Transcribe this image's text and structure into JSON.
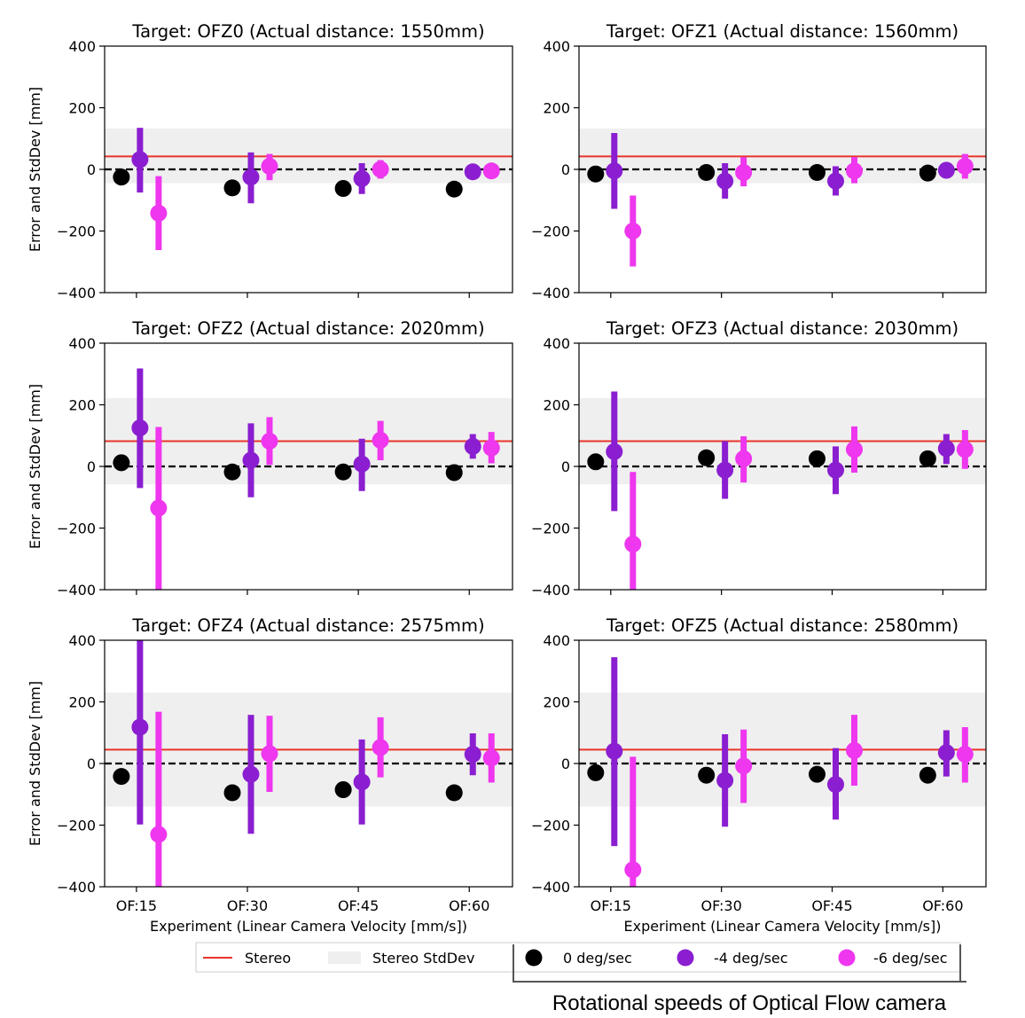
{
  "figure": {
    "annotation": "Rotational speeds of Optical Flow camera",
    "colors": {
      "stereo_line": "#e8352b",
      "stereo_band": "#efefef",
      "zero_line": "#000000",
      "axes": "#000000"
    }
  },
  "legend": {
    "items": [
      {
        "label": "Stereo",
        "kind": "line",
        "color": "#e8352b"
      },
      {
        "label": "Stereo StdDev",
        "kind": "band",
        "color": "#efefef"
      },
      {
        "label": "0 deg/sec",
        "kind": "marker",
        "color": "#000000"
      },
      {
        "label": "-4 deg/sec",
        "kind": "marker",
        "color": "#8a1ed0"
      },
      {
        "label": "-6 deg/sec",
        "kind": "marker",
        "color": "#ee37ee"
      }
    ]
  },
  "chart_data": [
    {
      "type": "scatter",
      "title": "Target: OFZ0 (Actual distance: 1550mm)",
      "ylabel": "Error and StdDev [mm]",
      "xlabel": "",
      "categories": [
        "OF:15",
        "OF:30",
        "OF:45",
        "OF:60"
      ],
      "ylim": [
        -400,
        400
      ],
      "yticks": [
        400,
        200,
        0,
        -200,
        -400
      ],
      "ytick_labels": [
        "400",
        "200",
        "0",
        "−200",
        "−400"
      ],
      "show_xtick_labels": false,
      "stereo": {
        "mean": 42,
        "std_low": -45,
        "std_high": 133
      },
      "series": [
        {
          "name": "0 deg/sec",
          "color": "#000000",
          "values": [
            -25,
            -60,
            -62,
            -64
          ],
          "err_low": [
            null,
            null,
            null,
            null
          ],
          "err_high": [
            null,
            null,
            null,
            null
          ]
        },
        {
          "name": "-4 deg/sec",
          "color": "#8a1ed0",
          "values": [
            32,
            -25,
            -30,
            -8
          ],
          "err_low": [
            -75,
            -110,
            -80,
            -8
          ],
          "err_high": [
            135,
            55,
            20,
            -8
          ]
        },
        {
          "name": "-6 deg/sec",
          "color": "#ee37ee",
          "values": [
            -142,
            10,
            0,
            -5
          ],
          "err_low": [
            -262,
            -35,
            -30,
            -5
          ],
          "err_high": [
            -22,
            50,
            30,
            -5
          ]
        }
      ]
    },
    {
      "type": "scatter",
      "title": "Target: OFZ1 (Actual distance: 1560mm)",
      "ylabel": "",
      "xlabel": "",
      "categories": [
        "OF:15",
        "OF:30",
        "OF:45",
        "OF:60"
      ],
      "ylim": [
        -400,
        400
      ],
      "yticks": [
        400,
        200,
        0,
        -200,
        -400
      ],
      "ytick_labels": [
        "400",
        "200",
        "0",
        "−200",
        "−400"
      ],
      "show_xtick_labels": false,
      "stereo": {
        "mean": 42,
        "std_low": -45,
        "std_high": 133
      },
      "series": [
        {
          "name": "0 deg/sec",
          "color": "#000000",
          "values": [
            -15,
            -10,
            -10,
            -12
          ],
          "err_low": [
            null,
            null,
            null,
            null
          ],
          "err_high": [
            null,
            null,
            null,
            null
          ]
        },
        {
          "name": "-4 deg/sec",
          "color": "#8a1ed0",
          "values": [
            -5,
            -38,
            -38,
            -3
          ],
          "err_low": [
            -128,
            -95,
            -85,
            -22
          ],
          "err_high": [
            118,
            20,
            10,
            16
          ]
        },
        {
          "name": "-6 deg/sec",
          "color": "#ee37ee",
          "values": [
            -200,
            -10,
            -5,
            10
          ],
          "err_low": [
            -315,
            -55,
            -45,
            -30
          ],
          "err_high": [
            -85,
            40,
            40,
            50
          ]
        }
      ]
    },
    {
      "type": "scatter",
      "title": "Target: OFZ2 (Actual distance: 2020mm)",
      "ylabel": "Error and StdDev [mm]",
      "xlabel": "",
      "categories": [
        "OF:15",
        "OF:30",
        "OF:45",
        "OF:60"
      ],
      "ylim": [
        -400,
        400
      ],
      "yticks": [
        400,
        200,
        0,
        -200,
        -400
      ],
      "ytick_labels": [
        "400",
        "200",
        "0",
        "−200",
        "−400"
      ],
      "show_xtick_labels": false,
      "stereo": {
        "mean": 82,
        "std_low": -58,
        "std_high": 222
      },
      "series": [
        {
          "name": "0 deg/sec",
          "color": "#000000",
          "values": [
            12,
            -18,
            -18,
            -20
          ],
          "err_low": [
            null,
            null,
            null,
            null
          ],
          "err_high": [
            null,
            null,
            null,
            null
          ]
        },
        {
          "name": "-4 deg/sec",
          "color": "#8a1ed0",
          "values": [
            125,
            20,
            8,
            65
          ],
          "err_low": [
            -70,
            -100,
            -80,
            25
          ],
          "err_high": [
            318,
            140,
            90,
            105
          ]
        },
        {
          "name": "-6 deg/sec",
          "color": "#ee37ee",
          "values": [
            -135,
            82,
            85,
            60
          ],
          "err_low": [
            -400,
            5,
            20,
            10
          ],
          "err_high": [
            128,
            160,
            148,
            112
          ]
        }
      ]
    },
    {
      "type": "scatter",
      "title": "Target: OFZ3 (Actual distance: 2030mm)",
      "ylabel": "",
      "xlabel": "",
      "categories": [
        "OF:15",
        "OF:30",
        "OF:45",
        "OF:60"
      ],
      "ylim": [
        -400,
        400
      ],
      "yticks": [
        400,
        200,
        0,
        -200,
        -400
      ],
      "ytick_labels": [
        "400",
        "200",
        "0",
        "−200",
        "−400"
      ],
      "show_xtick_labels": false,
      "stereo": {
        "mean": 82,
        "std_low": -58,
        "std_high": 222
      },
      "series": [
        {
          "name": "0 deg/sec",
          "color": "#000000",
          "values": [
            15,
            28,
            25,
            25
          ],
          "err_low": [
            null,
            null,
            null,
            null
          ],
          "err_high": [
            null,
            null,
            null,
            null
          ]
        },
        {
          "name": "-4 deg/sec",
          "color": "#8a1ed0",
          "values": [
            48,
            -12,
            -12,
            58
          ],
          "err_low": [
            -145,
            -105,
            -90,
            8
          ],
          "err_high": [
            243,
            82,
            65,
            105
          ]
        },
        {
          "name": "-6 deg/sec",
          "color": "#ee37ee",
          "values": [
            -252,
            25,
            55,
            55
          ],
          "err_low": [
            -400,
            -52,
            -20,
            -8
          ],
          "err_high": [
            -18,
            98,
            130,
            118
          ]
        }
      ]
    },
    {
      "type": "scatter",
      "title": "Target: OFZ4 (Actual distance: 2575mm)",
      "ylabel": "Error and StdDev [mm]",
      "xlabel": "Experiment (Linear Camera Velocity [mm/s])",
      "categories": [
        "OF:15",
        "OF:30",
        "OF:45",
        "OF:60"
      ],
      "ylim": [
        -400,
        400
      ],
      "yticks": [
        400,
        200,
        0,
        -200,
        -400
      ],
      "ytick_labels": [
        "400",
        "200",
        "0",
        "−200",
        "−400"
      ],
      "show_xtick_labels": true,
      "stereo": {
        "mean": 45,
        "std_low": -140,
        "std_high": 230
      },
      "series": [
        {
          "name": "0 deg/sec",
          "color": "#000000",
          "values": [
            -42,
            -95,
            -85,
            -95
          ],
          "err_low": [
            null,
            null,
            null,
            null
          ],
          "err_high": [
            null,
            null,
            null,
            null
          ]
        },
        {
          "name": "-4 deg/sec",
          "color": "#8a1ed0",
          "values": [
            118,
            -35,
            -60,
            30
          ],
          "err_low": [
            -198,
            -228,
            -198,
            -38
          ],
          "err_high": [
            400,
            158,
            78,
            98
          ]
        },
        {
          "name": "-6 deg/sec",
          "color": "#ee37ee",
          "values": [
            -230,
            32,
            52,
            18
          ],
          "err_low": [
            -400,
            -92,
            -45,
            -62
          ],
          "err_high": [
            168,
            155,
            150,
            98
          ]
        }
      ]
    },
    {
      "type": "scatter",
      "title": "Target: OFZ5 (Actual distance: 2580mm)",
      "ylabel": "",
      "xlabel": "Experiment (Linear Camera Velocity [mm/s])",
      "categories": [
        "OF:15",
        "OF:30",
        "OF:45",
        "OF:60"
      ],
      "ylim": [
        -400,
        400
      ],
      "yticks": [
        400,
        200,
        0,
        -200,
        -400
      ],
      "ytick_labels": [
        "400",
        "200",
        "0",
        "−200",
        "−400"
      ],
      "show_xtick_labels": true,
      "stereo": {
        "mean": 45,
        "std_low": -140,
        "std_high": 230
      },
      "series": [
        {
          "name": "0 deg/sec",
          "color": "#000000",
          "values": [
            -30,
            -38,
            -35,
            -38
          ],
          "err_low": [
            null,
            null,
            null,
            null
          ],
          "err_high": [
            null,
            null,
            null,
            null
          ]
        },
        {
          "name": "-4 deg/sec",
          "color": "#8a1ed0",
          "values": [
            40,
            -55,
            -68,
            35
          ],
          "err_low": [
            -268,
            -205,
            -182,
            -42
          ],
          "err_high": [
            345,
            95,
            50,
            108
          ]
        },
        {
          "name": "-6 deg/sec",
          "color": "#ee37ee",
          "values": [
            -345,
            -8,
            42,
            30
          ],
          "err_low": [
            -400,
            -128,
            -72,
            -62
          ],
          "err_high": [
            22,
            110,
            158,
            118
          ]
        }
      ]
    }
  ]
}
